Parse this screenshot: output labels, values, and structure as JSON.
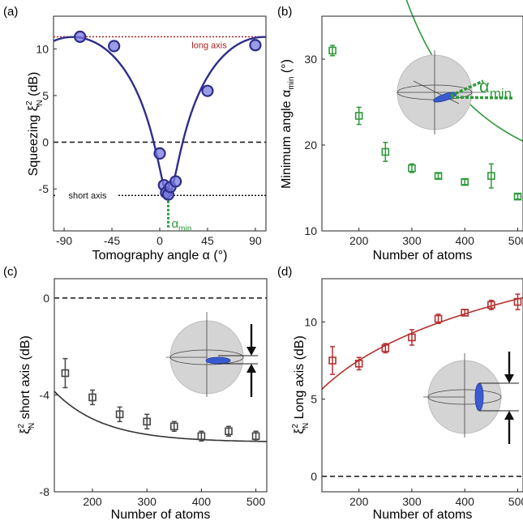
{
  "colors": {
    "navy": "#2e2e8c",
    "green": "#2e9a3a",
    "gray": "#454545",
    "red": "#b4302e",
    "darkred": "#b02020",
    "blue_ellipse": "#3a5bd0",
    "sphere": "#d4d4d4"
  },
  "chart_data": [
    {
      "panel": "(a)",
      "type": "scatter",
      "xlabel": "Tomography angle α (°)",
      "ylabel_prefix": "Squeezing ξ",
      "ylabel_sup": "2",
      "ylabel_sub": "N",
      "ylabel_suffix": " (dB)",
      "xlim": [
        -100,
        100
      ],
      "ylim": [
        -9.5,
        13.5
      ],
      "xticks": [
        -90,
        -45,
        0,
        45,
        90
      ],
      "yticks": [
        -5,
        0,
        5,
        10
      ],
      "x": [
        -75,
        -43,
        0,
        4,
        6,
        8,
        10,
        15,
        45,
        90
      ],
      "y": [
        11.3,
        10.3,
        -1.2,
        -4.6,
        -5.4,
        -5.6,
        -4.8,
        -4.2,
        5.5,
        10.4
      ],
      "ref_lines": [
        {
          "label": "long axis",
          "y": 11.3
        },
        {
          "label": "",
          "y": 0
        },
        {
          "label": "short axis",
          "y": -5.7
        }
      ],
      "annotation": {
        "symbol": "α",
        "sub": "min",
        "x": 8
      }
    },
    {
      "panel": "(b)",
      "type": "scatter",
      "xlabel": "Number of atoms",
      "ylabel_prefix": "Minimum angle α",
      "ylabel_sub": "min",
      "ylabel_suffix": " (°)",
      "xlim": [
        130,
        510
      ],
      "ylim": [
        10,
        35
      ],
      "xticks": [
        100,
        200,
        300,
        400,
        500
      ],
      "yticks": [
        10,
        20,
        30
      ],
      "x": [
        150,
        200,
        250,
        300,
        350,
        400,
        450,
        500
      ],
      "y": [
        31,
        23.4,
        19.2,
        17.3,
        16.4,
        15.7,
        16.4,
        14.0
      ],
      "err": [
        0.6,
        1.0,
        1.1,
        0.5,
        0.3,
        0.3,
        1.4,
        0.3
      ],
      "inset_label": {
        "symbol": "α",
        "sub": "min"
      }
    },
    {
      "panel": "(c)",
      "type": "scatter",
      "xlabel": "Number of atoms",
      "ylabel_prefix": "ξ",
      "ylabel_sup": "2",
      "ylabel_sub": "N",
      "ylabel_suffix": " short axis (dB)",
      "xlim": [
        130,
        520
      ],
      "ylim": [
        -8,
        0.8
      ],
      "xticks": [
        200,
        300,
        400,
        500
      ],
      "yticks": [
        -8,
        -4,
        0
      ],
      "x": [
        150,
        200,
        250,
        300,
        350,
        400,
        450,
        500
      ],
      "y": [
        -3.1,
        -4.1,
        -4.8,
        -5.1,
        -5.3,
        -5.7,
        -5.5,
        -5.7
      ],
      "err": [
        0.6,
        0.3,
        0.3,
        0.3,
        0.2,
        0.2,
        0.2,
        0.2
      ]
    },
    {
      "panel": "(d)",
      "type": "scatter",
      "xlabel": "Number of atoms",
      "ylabel_prefix": "ξ",
      "ylabel_sup": "2",
      "ylabel_sub": "N",
      "ylabel_suffix": " Long axis (dB)",
      "xlim": [
        130,
        510
      ],
      "ylim": [
        -1,
        12.8
      ],
      "xticks": [
        200,
        300,
        400,
        500
      ],
      "yticks": [
        0,
        5,
        10
      ],
      "x": [
        150,
        200,
        250,
        300,
        350,
        400,
        450,
        500
      ],
      "y": [
        7.5,
        7.3,
        8.3,
        9.0,
        10.2,
        10.6,
        11.1,
        11.3
      ],
      "err": [
        0.9,
        0.4,
        0.3,
        0.5,
        0.3,
        0.2,
        0.3,
        0.5
      ]
    }
  ]
}
